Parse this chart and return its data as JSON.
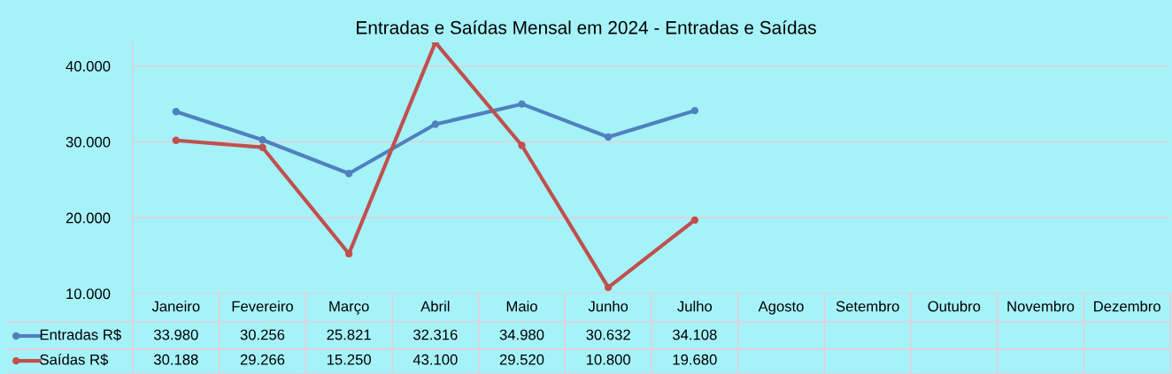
{
  "chart_data": {
    "type": "line",
    "title": "Entradas e Saídas Mensal em 2024 - Entradas e Saídas",
    "categories": [
      "Janeiro",
      "Fevereiro",
      "Março",
      "Abril",
      "Maio",
      "Junho",
      "Julho",
      "Agosto",
      "Setembro",
      "Outubro",
      "Novembro",
      "Dezembro"
    ],
    "series": [
      {
        "name": "Entradas R$",
        "color": "#4f81bd",
        "values": [
          33980,
          30256,
          25821,
          32316,
          34980,
          30632,
          34108,
          null,
          null,
          null,
          null,
          null
        ],
        "value_labels": [
          "33.980",
          "30.256",
          "25.821",
          "32.316",
          "34.980",
          "30.632",
          "34.108",
          null,
          null,
          null,
          null,
          null
        ]
      },
      {
        "name": "Saídas R$",
        "color": "#c0504d",
        "values": [
          30188,
          29266,
          15250,
          43100,
          29520,
          10800,
          19680,
          null,
          null,
          null,
          null,
          null
        ],
        "value_labels": [
          "30.188",
          "29.266",
          "15.250",
          "43.100",
          "29.520",
          "10.800",
          "19.680",
          null,
          null,
          null,
          null,
          null
        ]
      }
    ],
    "ylim": [
      10000,
      43100
    ],
    "yticks": [
      {
        "value": 10000,
        "label": "10.000"
      },
      {
        "value": 20000,
        "label": "20.000"
      },
      {
        "value": 30000,
        "label": "30.000"
      },
      {
        "value": 40000,
        "label": "40.000"
      }
    ],
    "grid": "y",
    "legend": "bottom",
    "marker": "circle",
    "line_style": "solid"
  }
}
